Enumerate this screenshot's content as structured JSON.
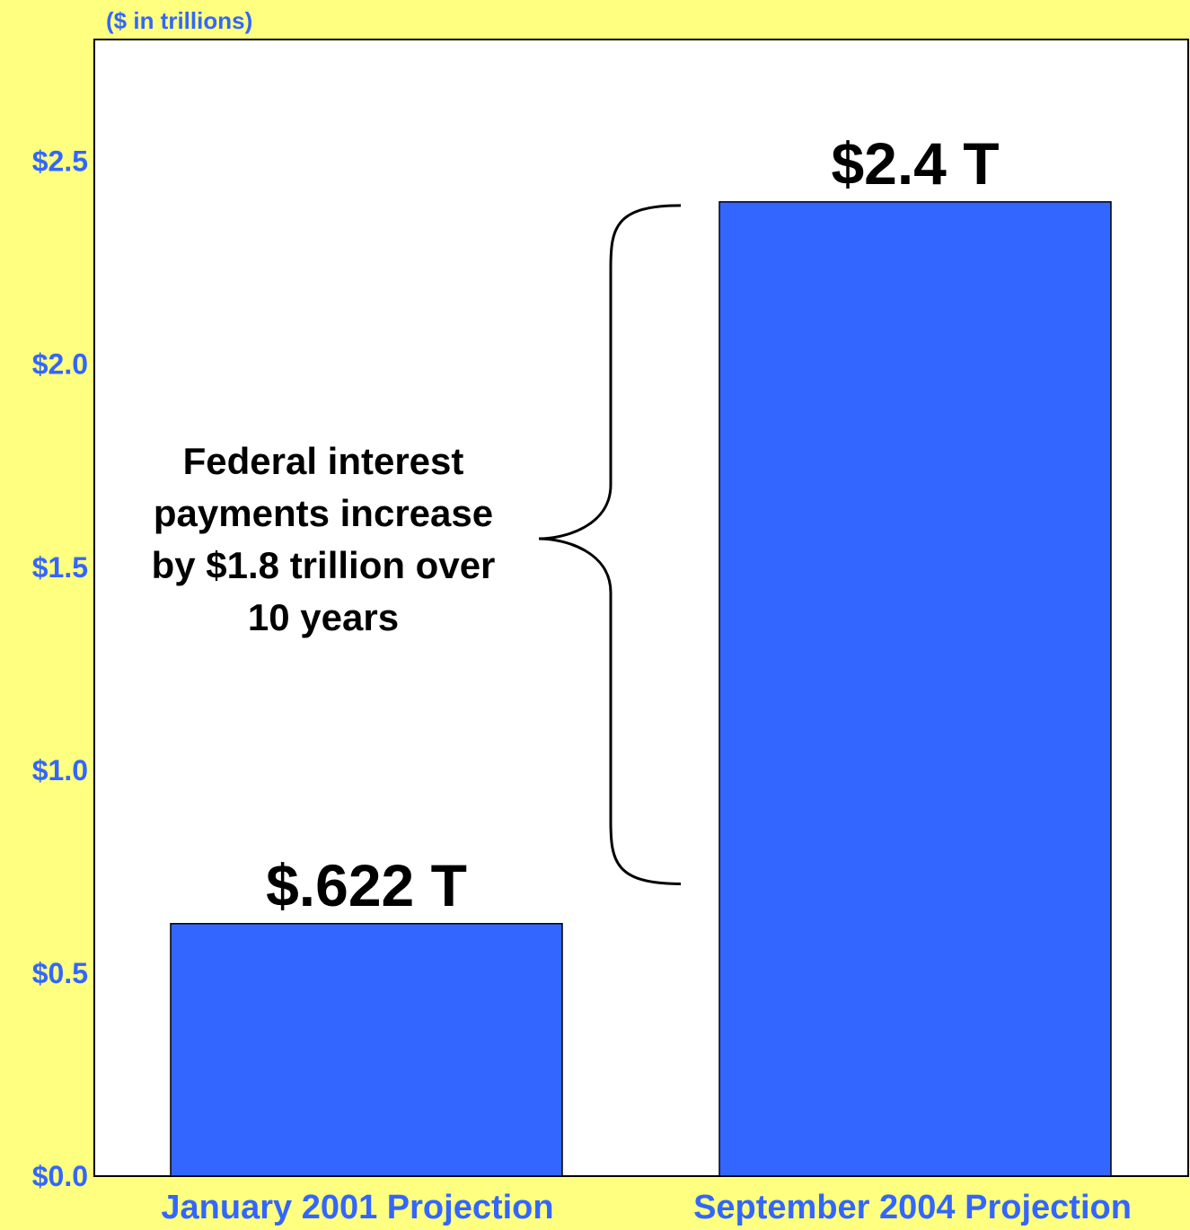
{
  "chart_data": {
    "type": "bar",
    "unit_label": "($ in trillions)",
    "categories": [
      "January 2001 Projection",
      "September 2004 Projection"
    ],
    "values": [
      0.622,
      2.4
    ],
    "data_labels": [
      "$.622 T",
      "$2.4 T"
    ],
    "y_ticks": [
      0.0,
      0.5,
      1.0,
      1.5,
      2.0,
      2.5
    ],
    "y_tick_labels": [
      "$0.0",
      "$0.5",
      "$1.0",
      "$1.5",
      "$2.0",
      "$2.5"
    ],
    "ylim": [
      0,
      2.8
    ],
    "grid": false,
    "annotation": {
      "lines": [
        "Federal interest",
        "payments increase",
        "by $1.8 trillion over",
        "10 years"
      ],
      "from_value": 0.72,
      "to_value": 2.4
    },
    "colors": {
      "background": "#ffff80",
      "plot_background": "#ffffff",
      "bar": "#3366ff",
      "axis_text": "#3366ff",
      "annotation_text": "#000000"
    }
  }
}
